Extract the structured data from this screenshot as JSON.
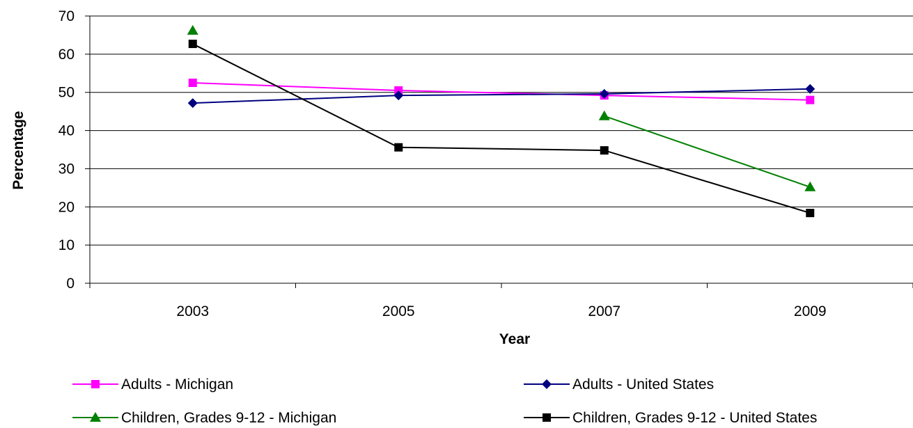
{
  "chart_data": {
    "type": "line",
    "title": "",
    "xlabel": "Year",
    "ylabel": "Percentage",
    "categories": [
      "2003",
      "2005",
      "2007",
      "2009"
    ],
    "ylim": [
      0,
      70
    ],
    "yticks": [
      0,
      10,
      20,
      30,
      40,
      50,
      60,
      70
    ],
    "grid": true,
    "legend_position": "bottom",
    "series": [
      {
        "name": "Adults - Michigan",
        "values": [
          52.5,
          50.5,
          49.2,
          48.0
        ],
        "color": "#ff00ff",
        "marker": "square"
      },
      {
        "name": "Adults - United States",
        "values": [
          47.2,
          49.2,
          49.6,
          50.9
        ],
        "color": "#000080",
        "marker": "diamond"
      },
      {
        "name": "Children, Grades 9-12 - Michigan",
        "values": [
          66.2,
          null,
          43.8,
          25.2
        ],
        "color": "#008000",
        "marker": "triangle"
      },
      {
        "name": "Children, Grades 9-12 - United States",
        "values": [
          62.7,
          35.6,
          34.8,
          18.4
        ],
        "color": "#000000",
        "marker": "square"
      }
    ]
  }
}
